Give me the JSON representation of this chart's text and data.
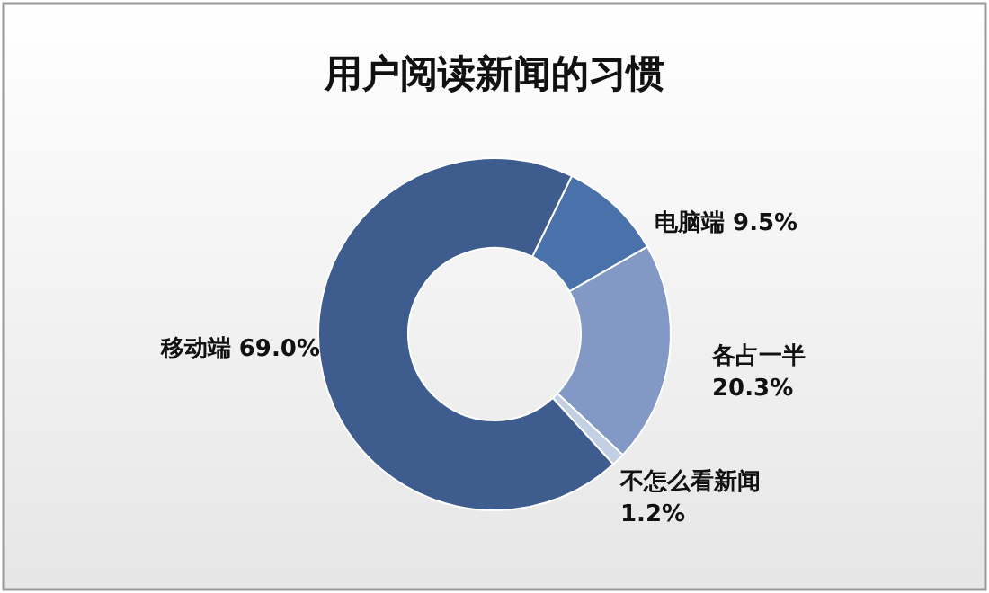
{
  "chart_data": {
    "type": "donut",
    "title": "用户阅读新闻的习惯",
    "categories": [
      "电脑端",
      "各占一半",
      "不怎么看新闻",
      "移动端"
    ],
    "values": [
      9.5,
      20.3,
      1.2,
      69.0
    ],
    "colors": [
      "#4a72aa",
      "#8199c4",
      "#c3cfe2",
      "#3e5d8e"
    ],
    "value_labels": [
      "9.5%",
      "20.3%",
      "1.2%",
      "69.0%"
    ],
    "legend": false
  }
}
